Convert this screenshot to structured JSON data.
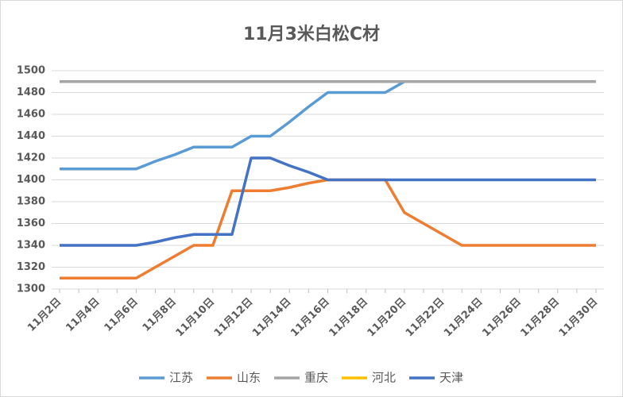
{
  "chart_data": {
    "type": "line",
    "title": "11月3米白松C材",
    "categories": [
      "11月2日",
      null,
      "11月4日",
      null,
      "11月6日",
      null,
      "11月8日",
      null,
      "11月10日",
      null,
      "11月12日",
      null,
      "11月14日",
      null,
      "11月16日",
      null,
      "11月18日",
      null,
      "11月20日",
      null,
      "11月22日",
      null,
      "11月24日",
      null,
      "11月26日",
      null,
      "11月28日",
      null,
      "11月30日"
    ],
    "series": [
      {
        "name": "江苏",
        "color": "#5b9bd5",
        "values": [
          1410,
          1410,
          1410,
          1410,
          1410,
          1417,
          1423,
          1430,
          1430,
          1430,
          1440,
          1440,
          1453,
          1467,
          1480,
          1480,
          1480,
          1480,
          1490,
          1490,
          1490,
          1490,
          1490,
          1490,
          1490,
          1490,
          1490,
          1490,
          1490
        ]
      },
      {
        "name": "山东",
        "color": "#ed7d31",
        "values": [
          1310,
          1310,
          1310,
          1310,
          1310,
          1320,
          1330,
          1340,
          1340,
          1390,
          1390,
          1390,
          1393,
          1397,
          1400,
          1400,
          1400,
          1400,
          1370,
          1360,
          1350,
          1340,
          1340,
          1340,
          1340,
          1340,
          1340,
          1340,
          1340
        ]
      },
      {
        "name": "重庆",
        "color": "#a5a5a5",
        "values": [
          1490,
          1490,
          1490,
          1490,
          1490,
          1490,
          1490,
          1490,
          1490,
          1490,
          1490,
          1490,
          1490,
          1490,
          1490,
          1490,
          1490,
          1490,
          1490,
          1490,
          1490,
          1490,
          1490,
          1490,
          1490,
          1490,
          1490,
          1490,
          1490
        ]
      },
      {
        "name": "河北",
        "color": "#ffc000",
        "values": [
          null,
          null,
          null,
          null,
          null,
          null,
          null,
          null,
          null,
          null,
          null,
          null,
          null,
          null,
          null,
          null,
          null,
          null,
          null,
          null,
          null,
          null,
          null,
          null,
          null,
          null,
          null,
          null,
          null
        ]
      },
      {
        "name": "天津",
        "color": "#4472c4",
        "values": [
          1340,
          1340,
          1340,
          1340,
          1340,
          1343,
          1347,
          1350,
          1350,
          1350,
          1420,
          1420,
          1413,
          1407,
          1400,
          1400,
          1400,
          1400,
          1400,
          1400,
          1400,
          1400,
          1400,
          1400,
          1400,
          1400,
          1400,
          1400,
          1400
        ]
      }
    ],
    "ylim": [
      1300,
      1500
    ],
    "yticks": [
      1300,
      1320,
      1340,
      1360,
      1380,
      1400,
      1420,
      1440,
      1460,
      1480,
      1500
    ],
    "grid": true
  }
}
